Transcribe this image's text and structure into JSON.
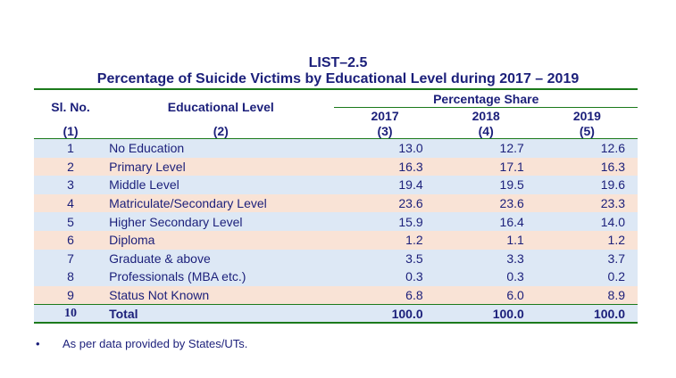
{
  "list_label": "LIST–2.5",
  "title": "Percentage of Suicide Victims by Educational Level during 2017 – 2019",
  "headers": {
    "sl_no": "Sl. No.",
    "educational_level": "Educational Level",
    "percentage_share": "Percentage Share",
    "years": [
      "2017",
      "2018",
      "2019"
    ],
    "column_numbers": [
      "(1)",
      "(2)",
      "(3)",
      "(4)",
      "(5)"
    ]
  },
  "rows": [
    {
      "sl": "1",
      "level": "No Education",
      "v2017": "13.0",
      "v2018": "12.7",
      "v2019": "12.6"
    },
    {
      "sl": "2",
      "level": "Primary Level",
      "v2017": "16.3",
      "v2018": "17.1",
      "v2019": "16.3"
    },
    {
      "sl": "3",
      "level": "Middle Level",
      "v2017": "19.4",
      "v2018": "19.5",
      "v2019": "19.6"
    },
    {
      "sl": "4",
      "level": "Matriculate/Secondary Level",
      "v2017": "23.6",
      "v2018": "23.6",
      "v2019": "23.3"
    },
    {
      "sl": "5",
      "level": "Higher Secondary Level",
      "v2017": "15.9",
      "v2018": "16.4",
      "v2019": "14.0"
    },
    {
      "sl": "6",
      "level": "Diploma",
      "v2017": "1.2",
      "v2018": "1.1",
      "v2019": "1.2"
    },
    {
      "sl": "7",
      "level": "Graduate & above",
      "v2017": "3.5",
      "v2018": "3.3",
      "v2019": "3.7"
    },
    {
      "sl": "8",
      "level": "Professionals (MBA etc.)",
      "v2017": "0.3",
      "v2018": "0.3",
      "v2019": "0.2"
    },
    {
      "sl": "9",
      "level": "Status Not Known",
      "v2017": "6.8",
      "v2018": "6.0",
      "v2019": "8.9"
    }
  ],
  "total": {
    "sl": "10",
    "level": "Total",
    "v2017": "100.0",
    "v2018": "100.0",
    "v2019": "100.0"
  },
  "footnote": "As per data provided by States/UTs.",
  "colors": {
    "text": "#1b1f7a",
    "rule": "#1b7a1b",
    "row_blue": "#dde8f5",
    "row_pink": "#f9e3d6"
  }
}
